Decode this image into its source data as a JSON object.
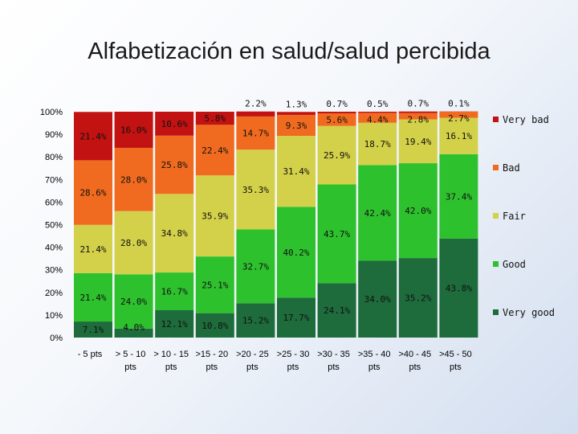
{
  "slide": {
    "title": "Alfabetización en salud/salud percibida"
  },
  "chart_data": {
    "type": "bar",
    "stacked": true,
    "title": "Alfabetización en salud/salud percibida",
    "xlabel": "",
    "ylabel": "",
    "ylim": [
      0,
      100
    ],
    "y_ticks": [
      "0%",
      "10%",
      "20%",
      "30%",
      "40%",
      "50%",
      "60%",
      "70%",
      "80%",
      "90%",
      "100%"
    ],
    "categories": [
      [
        "- 5 pts"
      ],
      [
        "> 5 - 10",
        "pts"
      ],
      [
        "> 10 - 15",
        "pts"
      ],
      [
        ">15 - 20",
        "pts"
      ],
      [
        ">20 - 25",
        "pts"
      ],
      [
        ">25 - 30",
        "pts"
      ],
      [
        ">30 - 35",
        "pts"
      ],
      [
        ">35 - 40",
        "pts"
      ],
      [
        ">40 - 45",
        "pts"
      ],
      [
        ">45 - 50",
        "pts"
      ]
    ],
    "series": [
      {
        "name": "Very good",
        "color": "#1e6b3c",
        "values": [
          7.1,
          4.0,
          12.1,
          10.8,
          15.2,
          17.7,
          24.1,
          34.0,
          35.2,
          43.8
        ],
        "labels": [
          "7.1%",
          "4.0%",
          "12.1%",
          "10.8%",
          "15.2%",
          "17.7%",
          "24.1%",
          "34.0%",
          "35.2%",
          "43.8%"
        ]
      },
      {
        "name": "Good",
        "color": "#2ec12e",
        "values": [
          21.4,
          24.0,
          16.7,
          25.1,
          32.7,
          40.2,
          43.7,
          42.4,
          42.0,
          37.4
        ],
        "labels": [
          "21.4%",
          "24.0%",
          "16.7%",
          "25.1%",
          "32.7%",
          "40.2%",
          "43.7%",
          "42.4%",
          "42.0%",
          "37.4%"
        ]
      },
      {
        "name": "Fair",
        "color": "#d3d04a",
        "values": [
          21.4,
          28.0,
          34.8,
          35.9,
          35.3,
          31.4,
          25.9,
          18.7,
          19.4,
          16.1
        ],
        "labels": [
          "21.4%",
          "28.0%",
          "34.8%",
          "35.9%",
          "35.3%",
          "31.4%",
          "25.9%",
          "18.7%",
          "19.4%",
          "16.1%"
        ]
      },
      {
        "name": "Bad",
        "color": "#f06b1f",
        "values": [
          28.6,
          28.0,
          25.8,
          22.4,
          14.7,
          9.3,
          5.6,
          4.4,
          2.8,
          2.7
        ],
        "labels": [
          "28.6%",
          "28.0%",
          "25.8%",
          "22.4%",
          "14.7%",
          "9.3%",
          "5.6%",
          "4.4%",
          "2.8%",
          "2.7%"
        ]
      },
      {
        "name": "Very bad",
        "color": "#c21212",
        "values": [
          21.4,
          16.0,
          10.6,
          5.8,
          2.2,
          1.3,
          0.7,
          0.5,
          0.7,
          0.1
        ],
        "labels": [
          "21.4%",
          "16.0%",
          "10.6%",
          "5.8%",
          "2.2%",
          "1.3%",
          "0.7%",
          "0.5%",
          "0.7%",
          "0.1%"
        ]
      }
    ],
    "legend": {
      "position": "right",
      "order": [
        "Very bad",
        "Bad",
        "Fair",
        "Good",
        "Very good"
      ]
    }
  }
}
